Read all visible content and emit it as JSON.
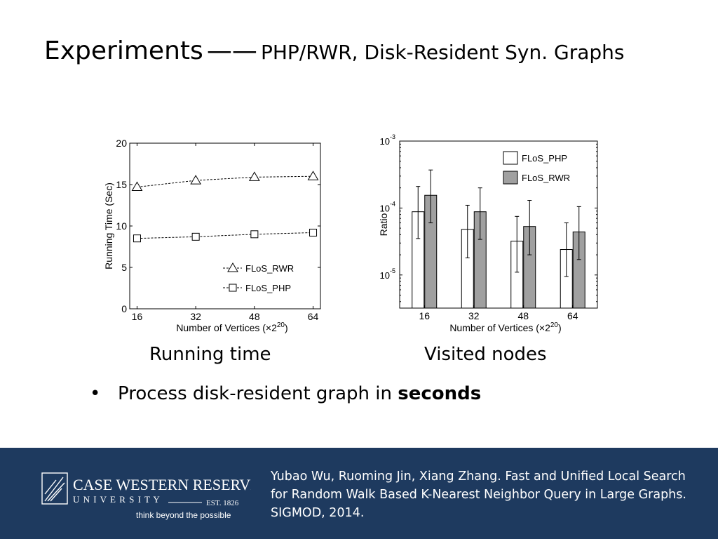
{
  "slide": {
    "title_main": "Experiments",
    "title_sep": "——",
    "title_sub": "PHP/RWR, Disk-Resident Syn. Graphs",
    "caption_left": "Running time",
    "caption_right": "Visited nodes",
    "bullet_text": "Process disk-resident graph in ",
    "bullet_bold": "seconds"
  },
  "footer": {
    "logo_text": "CASE WESTERN RESERVE",
    "logo_sub": "U N I V E R S I T Y",
    "logo_est": "EST. 1826",
    "logo_tagline": "think beyond the possible",
    "citation": [
      "Yubao Wu, Ruoming Jin, Xiang Zhang. Fast and Unified Local Search",
      "for Random Walk Based K-Nearest Neighbor Query in Large Graphs.",
      "SIGMOD, 2014."
    ]
  },
  "colors": {
    "footer_bg": "#1e3a5f",
    "bar_php": "#ffffff",
    "bar_rwr": "#a0a0a0"
  },
  "chart_data": [
    {
      "type": "line",
      "x": [
        16,
        32,
        48,
        64
      ],
      "xticks": [
        "16",
        "32",
        "48",
        "64"
      ],
      "xlabel": "Number of Vertices (×2^20)",
      "ylabel": "Running Time (Sec)",
      "ylim": [
        0,
        20
      ],
      "yticks": [
        0,
        5,
        10,
        15,
        20
      ],
      "legend_position": "bottom-right",
      "series": [
        {
          "name": "FLoS_RWR",
          "marker": "triangle",
          "values": [
            14.7,
            15.5,
            15.9,
            16.0
          ]
        },
        {
          "name": "FLoS_PHP",
          "marker": "square",
          "values": [
            8.5,
            8.7,
            9.0,
            9.2
          ]
        }
      ]
    },
    {
      "type": "bar",
      "scale": "log",
      "categories": [
        "16",
        "32",
        "48",
        "64"
      ],
      "xlabel": "Number of Vertices (×2^20)",
      "ylabel": "Ratio",
      "ylim": [
        3.2e-06,
        0.001
      ],
      "yticks": [
        {
          "value": 1e-05,
          "base": "10",
          "exp": "-5"
        },
        {
          "value": 0.0001,
          "base": "10",
          "exp": "-4"
        },
        {
          "value": 0.001,
          "base": "10",
          "exp": "-3"
        }
      ],
      "legend_position": "top-right",
      "series": [
        {
          "name": "FLoS_PHP",
          "values": [
            8.8e-05,
            4.8e-05,
            3.2e-05,
            2.4e-05
          ],
          "err_low": [
            3.5e-05,
            1.8e-05,
            1.1e-05,
            9.5e-06
          ],
          "err_high": [
            0.00021,
            0.00011,
            7.5e-05,
            6e-05
          ]
        },
        {
          "name": "FLoS_RWR",
          "values": [
            0.000155,
            8.8e-05,
            5.3e-05,
            4.4e-05
          ],
          "err_low": [
            6e-05,
            3.4e-05,
            2e-05,
            1.7e-05
          ],
          "err_high": [
            0.00037,
            0.0002,
            0.00013,
            0.000105
          ]
        }
      ]
    }
  ]
}
